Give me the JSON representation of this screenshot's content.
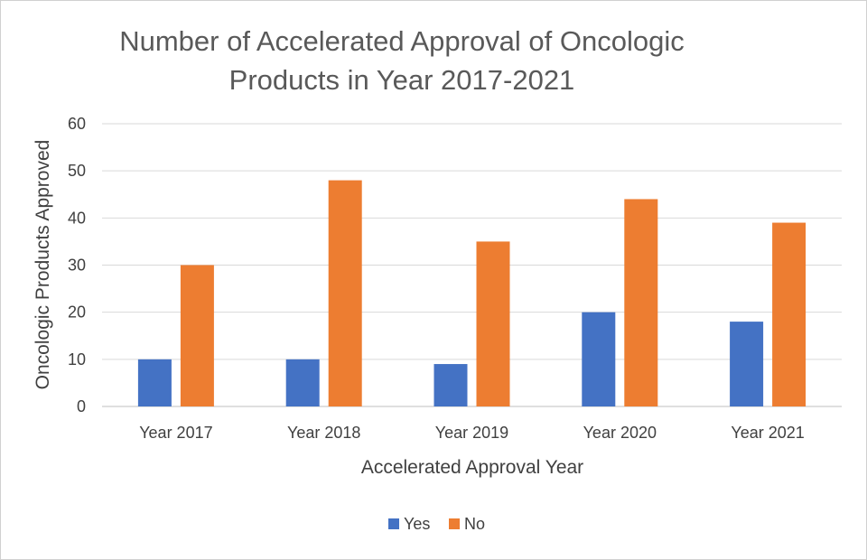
{
  "chart_data": {
    "type": "bar",
    "title": "Number of Accelerated Approval of Oncologic Products in Year 2017-2021",
    "title_lines": [
      "Number of Accelerated Approval of Oncologic",
      "Products in Year 2017-2021"
    ],
    "xlabel": "Accelerated Approval Year",
    "ylabel": "Oncologic Products Approved",
    "categories": [
      "Year 2017",
      "Year 2018",
      "Year 2019",
      "Year 2020",
      "Year 2021"
    ],
    "series": [
      {
        "name": "Yes",
        "color": "#4472C4",
        "values": [
          10,
          10,
          9,
          20,
          18
        ]
      },
      {
        "name": "No",
        "color": "#ED7D31",
        "values": [
          30,
          48,
          35,
          44,
          39
        ]
      }
    ],
    "ylim": [
      0,
      60
    ],
    "yticks": [
      "0",
      "10",
      "20",
      "30",
      "40",
      "50",
      "60"
    ],
    "grid": true,
    "legend_position": "bottom"
  }
}
